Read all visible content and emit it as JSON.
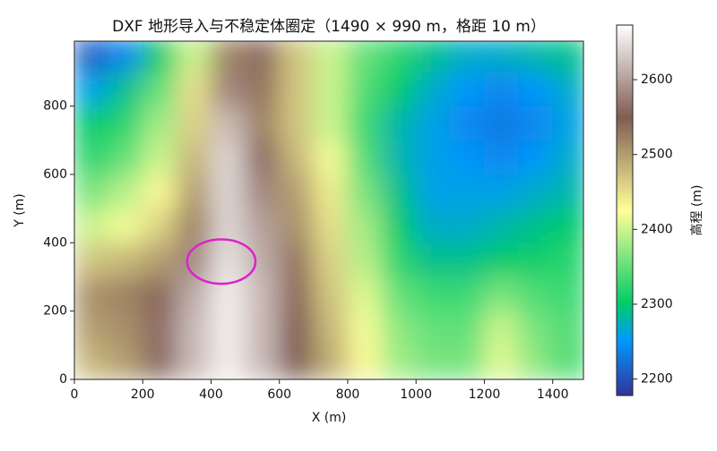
{
  "chart_data": {
    "type": "heatmap",
    "title": "DXF 地形导入与不稳定体圈定（1490 × 990 m，格距 10 m）",
    "x_label": "X (m)",
    "y_label": "Y (m)",
    "colorbar_label": "高程 (m)",
    "x": [
      50,
      150,
      250,
      350,
      450,
      550,
      650,
      750,
      850,
      950,
      1050,
      1150,
      1250,
      1350,
      1450
    ],
    "y": [
      50,
      150,
      250,
      350,
      450,
      550,
      650,
      750,
      850,
      950
    ],
    "z": [
      [
        2480,
        2500,
        2560,
        2620,
        2660,
        2620,
        2550,
        2490,
        2430,
        2380,
        2360,
        2360,
        2410,
        2370,
        2340
      ],
      [
        2500,
        2510,
        2560,
        2620,
        2660,
        2620,
        2550,
        2480,
        2420,
        2370,
        2350,
        2350,
        2400,
        2360,
        2340
      ],
      [
        2510,
        2520,
        2540,
        2610,
        2660,
        2620,
        2540,
        2470,
        2410,
        2350,
        2330,
        2330,
        2360,
        2340,
        2330
      ],
      [
        2470,
        2480,
        2500,
        2580,
        2650,
        2610,
        2530,
        2460,
        2390,
        2320,
        2290,
        2290,
        2300,
        2310,
        2320
      ],
      [
        2400,
        2420,
        2460,
        2520,
        2640,
        2600,
        2510,
        2450,
        2380,
        2300,
        2270,
        2270,
        2280,
        2290,
        2300
      ],
      [
        2360,
        2390,
        2430,
        2500,
        2640,
        2580,
        2500,
        2440,
        2360,
        2290,
        2260,
        2260,
        2260,
        2270,
        2280
      ],
      [
        2320,
        2350,
        2400,
        2480,
        2640,
        2560,
        2480,
        2420,
        2340,
        2280,
        2260,
        2250,
        2240,
        2250,
        2270
      ],
      [
        2300,
        2320,
        2380,
        2460,
        2620,
        2520,
        2470,
        2400,
        2330,
        2280,
        2260,
        2240,
        2230,
        2240,
        2260
      ],
      [
        2260,
        2290,
        2350,
        2450,
        2580,
        2530,
        2470,
        2400,
        2340,
        2300,
        2270,
        2250,
        2240,
        2250,
        2270
      ],
      [
        2210,
        2240,
        2300,
        2400,
        2520,
        2560,
        2470,
        2400,
        2350,
        2320,
        2290,
        2270,
        2270,
        2280,
        2290
      ]
    ],
    "xlim": [
      0,
      1490
    ],
    "ylim": [
      0,
      990
    ],
    "xticks": [
      0,
      200,
      400,
      600,
      800,
      1000,
      1200,
      1400
    ],
    "yticks": [
      0,
      200,
      400,
      600,
      800
    ],
    "clim": [
      2178,
      2673
    ],
    "cticks": [
      2200,
      2300,
      2400,
      2500,
      2600
    ],
    "colorscale": [
      [
        0,
        "#333399"
      ],
      [
        0.15,
        "#0099ff"
      ],
      [
        0.25,
        "#00cc66"
      ],
      [
        0.5,
        "#ffff99"
      ],
      [
        0.75,
        "#805c54"
      ],
      [
        1,
        "#ffffff"
      ]
    ],
    "ellipse": {
      "cx": 430,
      "cy": 345,
      "rx": 100,
      "ry": 65,
      "color": "#dd22cc"
    }
  }
}
